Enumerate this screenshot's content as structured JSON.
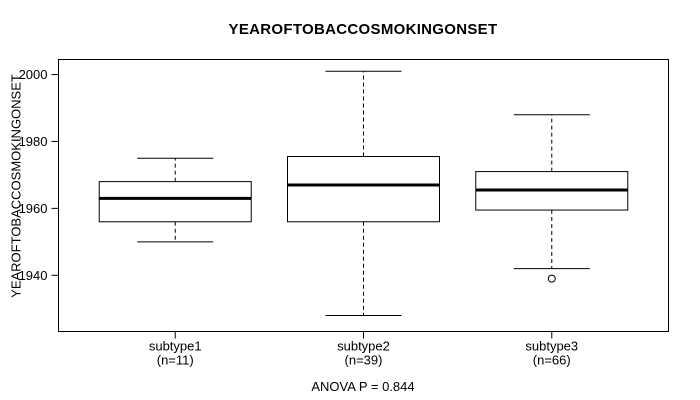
{
  "chart_data": {
    "type": "boxplot",
    "title": "YEAROFTOBACCOSMOKINGONSET",
    "ylabel": "YEAROFTOBACCOSMOKINGONSET",
    "xlabel": "",
    "footer": "ANOVA P = 0.844",
    "ylim": [
      1923.2,
      2004.5
    ],
    "yticks": [
      1940,
      1960,
      1980,
      2000
    ],
    "grid": false,
    "legend": "none",
    "groups": [
      {
        "label": "subtype1",
        "n_label": "(n=11)",
        "whisker_low": 1950,
        "q1": 1956,
        "median": 1963,
        "q3": 1968,
        "whisker_high": 1975,
        "outliers": []
      },
      {
        "label": "subtype2",
        "n_label": "(n=39)",
        "whisker_low": 1928,
        "q1": 1956,
        "median": 1967,
        "q3": 1975.5,
        "whisker_high": 2001,
        "outliers": []
      },
      {
        "label": "subtype3",
        "n_label": "(n=66)",
        "whisker_low": 1942,
        "q1": 1959.5,
        "median": 1965.5,
        "q3": 1971,
        "whisker_high": 1988,
        "outliers": [
          1939
        ]
      }
    ],
    "colors": {
      "stroke": "#000000",
      "box_fill": "#ffffff",
      "background": "#ffffff"
    }
  }
}
